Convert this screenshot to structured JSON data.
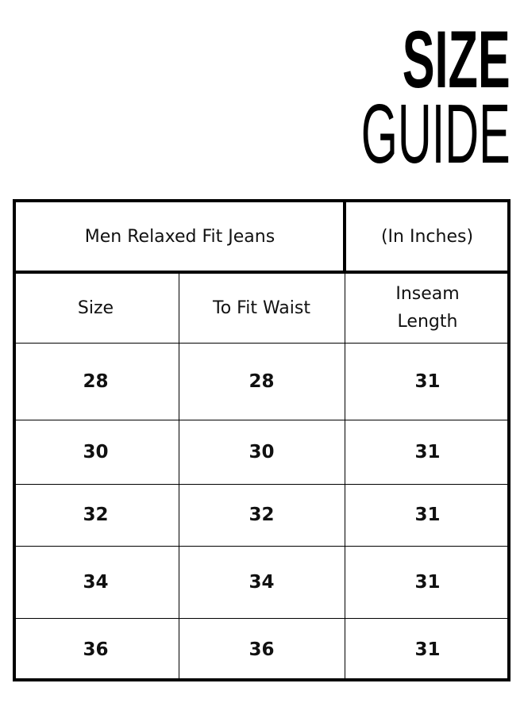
{
  "title": {
    "line1": "SIZE",
    "line2": "GUIDE"
  },
  "table": {
    "caption": "Men Relaxed Fit Jeans",
    "unit": "(In Inches)",
    "headers": [
      "Size",
      "To Fit Waist",
      "Inseam Length"
    ],
    "rows": [
      [
        "28",
        "28",
        "31"
      ],
      [
        "30",
        "30",
        "31"
      ],
      [
        "32",
        "32",
        "31"
      ],
      [
        "34",
        "34",
        "31"
      ],
      [
        "36",
        "36",
        "31"
      ]
    ]
  }
}
